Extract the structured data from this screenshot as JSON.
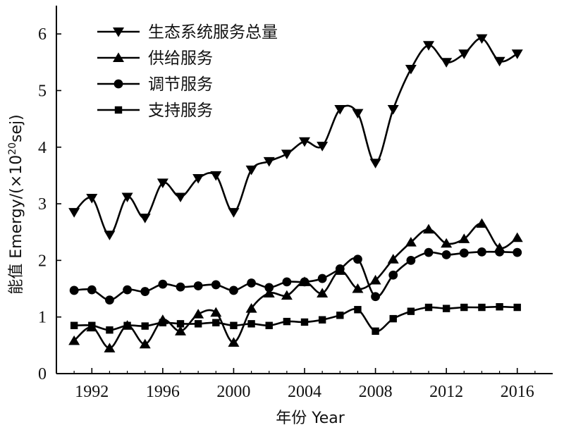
{
  "chart_data": {
    "type": "line",
    "x": [
      1991,
      1992,
      1993,
      1994,
      1995,
      1996,
      1997,
      1998,
      1999,
      2000,
      2001,
      2002,
      2003,
      2004,
      2005,
      2006,
      2007,
      2008,
      2009,
      2010,
      2011,
      2012,
      2013,
      2014,
      2015,
      2016
    ],
    "series": [
      {
        "name": "生态系统服务总量",
        "marker": "triangle-down",
        "values": [
          2.85,
          3.1,
          2.45,
          3.12,
          2.75,
          3.37,
          3.12,
          3.45,
          3.5,
          2.85,
          3.6,
          3.75,
          3.88,
          4.1,
          4.02,
          4.67,
          4.6,
          3.72,
          4.67,
          5.38,
          5.8,
          5.5,
          5.65,
          5.92,
          5.52,
          5.65
        ]
      },
      {
        "name": "供给服务",
        "marker": "triangle-up",
        "values": [
          0.58,
          0.82,
          0.45,
          0.85,
          0.52,
          0.95,
          0.75,
          1.05,
          1.08,
          0.55,
          1.15,
          1.42,
          1.38,
          1.62,
          1.42,
          1.82,
          1.5,
          1.65,
          2.02,
          2.32,
          2.55,
          2.3,
          2.38,
          2.65,
          2.22,
          2.4
        ]
      },
      {
        "name": "调节服务",
        "marker": "circle",
        "values": [
          1.47,
          1.48,
          1.3,
          1.48,
          1.45,
          1.58,
          1.53,
          1.55,
          1.57,
          1.47,
          1.6,
          1.52,
          1.62,
          1.62,
          1.68,
          1.85,
          2.02,
          1.36,
          1.74,
          2.0,
          2.14,
          2.1,
          2.13,
          2.15,
          2.15,
          2.14
        ]
      },
      {
        "name": "支持服务",
        "marker": "square",
        "values": [
          0.85,
          0.85,
          0.77,
          0.85,
          0.84,
          0.9,
          0.88,
          0.88,
          0.9,
          0.85,
          0.88,
          0.85,
          0.92,
          0.91,
          0.95,
          1.03,
          1.13,
          0.75,
          0.97,
          1.1,
          1.17,
          1.15,
          1.17,
          1.17,
          1.18,
          1.17
        ]
      }
    ],
    "xlabel": "年份 Year",
    "ylabel_prefix": "能值 Emergy/(×10",
    "ylabel_sup": "20",
    "ylabel_suffix": "sej)",
    "xlim": [
      1990,
      2018
    ],
    "ylim": [
      0,
      6.5
    ],
    "xticks": [
      1992,
      1996,
      2000,
      2004,
      2008,
      2012,
      2016
    ],
    "yticks": [
      0,
      1,
      2,
      3,
      4,
      5,
      6
    ],
    "grid": false,
    "legend_position": "top-left",
    "line_color": "#000000"
  }
}
